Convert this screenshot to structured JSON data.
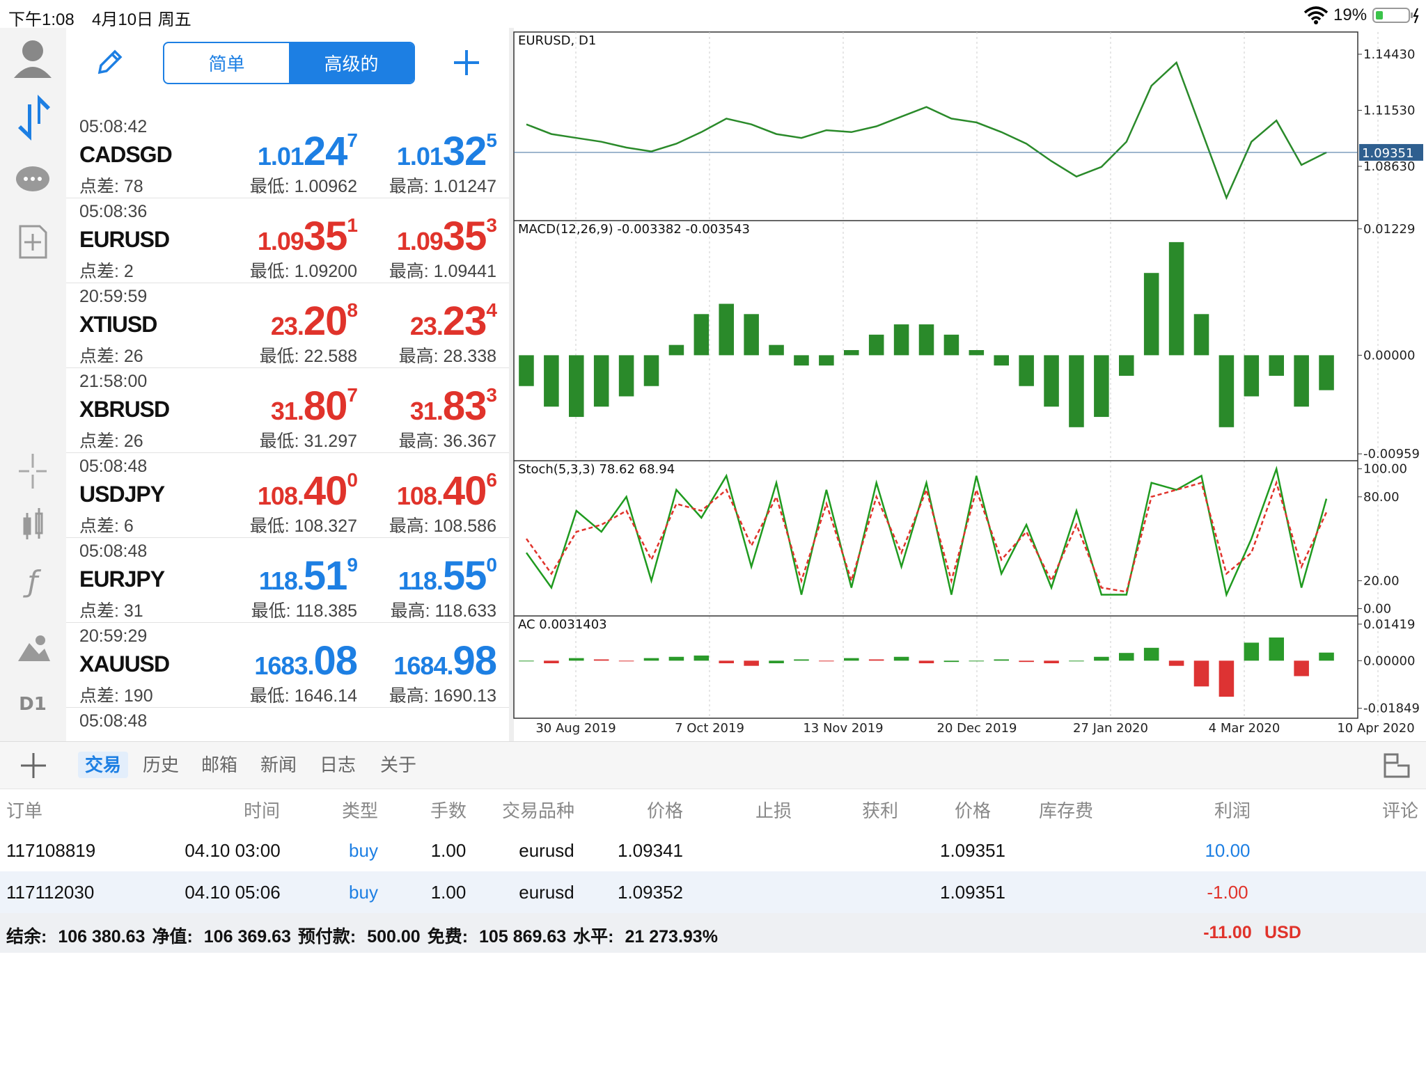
{
  "status": {
    "time": "下午1:08",
    "date": "4月10日 周五",
    "battery": "19%"
  },
  "sidebar": {
    "timeframe": "D1"
  },
  "quotes": {
    "modes": [
      "简单",
      "高级的"
    ],
    "rows": [
      {
        "time": "05:08:42",
        "name": "CADSGD",
        "spread": "点差: 78",
        "color": "#1d7fe3",
        "bid": {
          "small": "1.01",
          "big": "24",
          "sup": "7"
        },
        "ask": {
          "small": "1.01",
          "big": "32",
          "sup": "5"
        },
        "low": "最低: 1.00962",
        "high": "最高: 1.01247"
      },
      {
        "time": "05:08:36",
        "name": "EURUSD",
        "spread": "点差: 2",
        "color": "#e0332b",
        "bid": {
          "small": "1.09",
          "big": "35",
          "sup": "1"
        },
        "ask": {
          "small": "1.09",
          "big": "35",
          "sup": "3"
        },
        "low": "最低: 1.09200",
        "high": "最高: 1.09441"
      },
      {
        "time": "20:59:59",
        "name": "XTIUSD",
        "spread": "点差: 26",
        "color": "#e0332b",
        "bid": {
          "small": "23.",
          "big": "20",
          "sup": "8"
        },
        "ask": {
          "small": "23.",
          "big": "23",
          "sup": "4"
        },
        "low": "最低: 22.588",
        "high": "最高: 28.338"
      },
      {
        "time": "21:58:00",
        "name": "XBRUSD",
        "spread": "点差: 26",
        "color": "#e0332b",
        "bid": {
          "small": "31.",
          "big": "80",
          "sup": "7"
        },
        "ask": {
          "small": "31.",
          "big": "83",
          "sup": "3"
        },
        "low": "最低: 31.297",
        "high": "最高: 36.367"
      },
      {
        "time": "05:08:48",
        "name": "USDJPY",
        "spread": "点差: 6",
        "color": "#e0332b",
        "bid": {
          "small": "108.",
          "big": "40",
          "sup": "0"
        },
        "ask": {
          "small": "108.",
          "big": "40",
          "sup": "6"
        },
        "low": "最低: 108.327",
        "high": "最高: 108.586"
      },
      {
        "time": "05:08:48",
        "name": "EURJPY",
        "spread": "点差: 31",
        "color": "#1d7fe3",
        "bid": {
          "small": "118.",
          "big": "51",
          "sup": "9"
        },
        "ask": {
          "small": "118.",
          "big": "55",
          "sup": "0"
        },
        "low": "最低: 118.385",
        "high": "最高: 118.633"
      },
      {
        "time": "20:59:29",
        "name": "XAUUSD",
        "spread": "点差: 190",
        "color": "#1d7fe3",
        "bid": {
          "small": "1683.",
          "big": "08"
        },
        "ask": {
          "small": "1684.",
          "big": "98"
        },
        "low": "最低: 1646.14",
        "high": "最高: 1690.13"
      },
      {
        "time": "05:08:48"
      }
    ]
  },
  "chart_dates": [
    "30 Aug 2019",
    "7 Oct 2019",
    "13 Nov 2019",
    "20 Dec 2019",
    "27 Jan 2020",
    "4 Mar 2020",
    "10 Apr 2020"
  ],
  "chart_data": [
    {
      "type": "line",
      "title": "EURUSD, D1",
      "ylim": [
        1.0582,
        1.1558
      ],
      "yticks": [
        {
          "value": 1.1443,
          "label": "1.14430"
        },
        {
          "value": 1.1153,
          "label": "1.11530"
        },
        {
          "value": 1.0863,
          "label": "1.08630"
        }
      ],
      "last_price": 1.09351,
      "series": [
        {
          "color": "#2a8a2a",
          "values": [
            1.108,
            1.103,
            1.101,
            1.099,
            1.096,
            1.094,
            1.098,
            1.104,
            1.111,
            1.108,
            1.103,
            1.101,
            1.105,
            1.104,
            1.107,
            1.112,
            1.117,
            1.111,
            1.109,
            1.104,
            1.098,
            1.089,
            1.081,
            1.086,
            1.099,
            1.128,
            1.14,
            1.105,
            1.07,
            1.099,
            1.11,
            1.087,
            1.0935
          ]
        }
      ]
    },
    {
      "type": "bar",
      "title": "MACD(12,26,9) -0.003382 -0.003543",
      "ylim": [
        -0.01026,
        0.01309
      ],
      "yticks": [
        0.01229,
        {
          "value": 0,
          "label": "0.00000"
        },
        -0.00959
      ],
      "color": "#2a8a2a",
      "values": [
        -0.003,
        -0.005,
        -0.006,
        -0.005,
        -0.004,
        -0.003,
        0.001,
        0.004,
        0.005,
        0.004,
        0.001,
        -0.001,
        -0.001,
        0.0005,
        0.002,
        0.003,
        0.003,
        0.002,
        0.0005,
        -0.001,
        -0.003,
        -0.005,
        -0.007,
        -0.006,
        -0.002,
        0.008,
        0.011,
        0.004,
        -0.007,
        -0.004,
        -0.002,
        -0.005,
        -0.0034
      ]
    },
    {
      "type": "line",
      "title": "Stoch(5,3,3) 78.62 68.94",
      "ylim": [
        -5.2,
        105.8
      ],
      "yticks": [
        {
          "value": 100,
          "label": "100.00"
        },
        {
          "value": 80,
          "label": "80.00"
        },
        {
          "value": 20,
          "label": "20.00"
        },
        {
          "value": 0,
          "label": "0.00"
        }
      ],
      "series": [
        {
          "color": "#1f9a1f",
          "values": [
            40,
            15,
            70,
            55,
            80,
            20,
            85,
            65,
            95,
            30,
            90,
            10,
            85,
            15,
            90,
            30,
            90,
            10,
            95,
            25,
            60,
            15,
            70,
            10,
            10,
            90,
            85,
            95,
            10,
            50,
            100,
            15,
            78.62
          ]
        },
        {
          "color": "#e0332b",
          "dashed": true,
          "values": [
            50,
            25,
            55,
            60,
            70,
            35,
            75,
            70,
            85,
            45,
            80,
            20,
            75,
            20,
            80,
            40,
            85,
            20,
            85,
            35,
            55,
            20,
            60,
            15,
            12,
            80,
            85,
            90,
            25,
            40,
            90,
            30,
            68.94
          ]
        }
      ]
    },
    {
      "type": "bar",
      "title": "AC 0.0031403",
      "ylim": [
        -0.02235,
        0.01738
      ],
      "yticks": [
        0.01419,
        {
          "value": 0,
          "label": "0.00000"
        },
        -0.01849
      ],
      "up_color": "#2a9a2a",
      "down_color": "#d33",
      "values": [
        0,
        -0.001,
        0.001,
        0.0005,
        0,
        0.001,
        0.0015,
        0.002,
        -0.001,
        -0.002,
        -0.001,
        0.0005,
        0,
        0.001,
        0.0005,
        0.0015,
        -0.001,
        -0.0005,
        0,
        0.0005,
        -0.0005,
        -0.001,
        0,
        0.0015,
        0.003,
        0.005,
        -0.002,
        -0.01,
        -0.014,
        0.007,
        0.009,
        -0.006,
        0.0031403
      ]
    }
  ],
  "tabs": {
    "items": [
      "交易",
      "历史",
      "邮箱",
      "新闻",
      "日志",
      "关于"
    ],
    "selected": 0
  },
  "table": {
    "headers": [
      "订单",
      "时间",
      "类型",
      "手数",
      "交易品种",
      "价格",
      "止损",
      "获利",
      "价格",
      "库存费",
      "利润",
      "评论"
    ],
    "rows": [
      {
        "order": "117108819",
        "time": "04.10 03:00",
        "type": "buy",
        "lots": "1.00",
        "symbol": "eurusd",
        "open": "1.09341",
        "price": "1.09351",
        "profit": "10.00",
        "profit_color": "#1d7fe3"
      },
      {
        "order": "117112030",
        "time": "04.10 05:06",
        "type": "buy",
        "lots": "1.00",
        "symbol": "eurusd",
        "open": "1.09352",
        "price": "1.09351",
        "profit": "-1.00",
        "profit_color": "#e0332b"
      }
    ],
    "summary": [
      [
        "结余:",
        "106 380.63"
      ],
      [
        "净值:",
        "106 369.63"
      ],
      [
        "预付款:",
        "500.00"
      ],
      [
        "免费:",
        "105 869.63"
      ],
      [
        "水平:",
        "21 273.93%"
      ]
    ],
    "total": "-11.00",
    "currency": "USD"
  }
}
